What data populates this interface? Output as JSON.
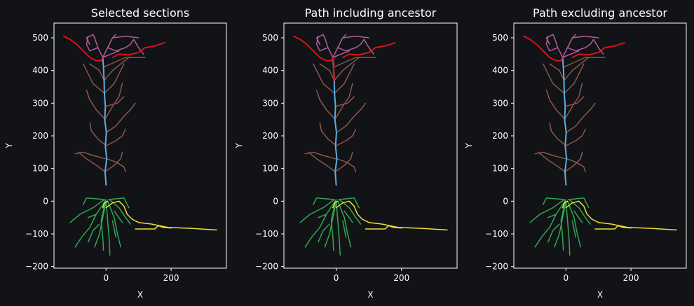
{
  "colors": {
    "background": "#121316",
    "axes": "#ffffff",
    "basal": "#2ea84f",
    "apical": "#8c564b",
    "tuft": "#b05aa0",
    "trunk": "#5aaee0",
    "selected_red": "#e8121c",
    "axon": "#f0dc3c"
  },
  "chart_data": [
    {
      "type": "line",
      "title": "Selected sections",
      "xlabel": "X",
      "ylabel": "Y",
      "xlim": [
        -160,
        370
      ],
      "ylim": [
        -205,
        545
      ],
      "xticks": [
        0,
        200
      ],
      "yticks": [
        -200,
        -100,
        0,
        100,
        200,
        300,
        400,
        500
      ],
      "highlight": "branch",
      "grid": false
    },
    {
      "type": "line",
      "title": "Path including ancestor",
      "xlabel": "X",
      "ylabel": "Y",
      "xlim": [
        -160,
        370
      ],
      "ylim": [
        -205,
        545
      ],
      "xticks": [
        0,
        200
      ],
      "yticks": [
        -200,
        -100,
        0,
        100,
        200,
        300,
        400,
        500
      ],
      "highlight": "path_with_ancestor",
      "grid": false
    },
    {
      "type": "line",
      "title": "Path excluding ancestor",
      "xlabel": "X",
      "ylabel": "Y",
      "xlim": [
        -160,
        370
      ],
      "ylim": [
        -205,
        545
      ],
      "xticks": [
        0,
        200
      ],
      "yticks": [
        -200,
        -100,
        0,
        100,
        200,
        300,
        400,
        500
      ],
      "highlight": "path_without_ancestor",
      "grid": false
    }
  ],
  "morphology": {
    "trunk": [
      [
        [
          0,
          50
        ],
        [
          -3,
          90
        ],
        [
          2,
          130
        ],
        [
          -2,
          170
        ],
        [
          1,
          210
        ],
        [
          -4,
          250
        ],
        [
          -2,
          290
        ],
        [
          -5,
          330
        ],
        [
          -6,
          370
        ],
        [
          -8,
          410
        ],
        [
          -10,
          440
        ]
      ]
    ],
    "axon": [
      [
        [
          0,
          -20
        ],
        [
          20,
          -5
        ],
        [
          40,
          0
        ],
        [
          55,
          -15
        ],
        [
          65,
          -40
        ],
        [
          80,
          -55
        ],
        [
          100,
          -65
        ],
        [
          140,
          -70
        ],
        [
          190,
          -80
        ],
        [
          260,
          -83
        ],
        [
          340,
          -88
        ]
      ],
      [
        [
          90,
          -85
        ],
        [
          150,
          -85
        ],
        [
          160,
          -75
        ],
        [
          175,
          -80
        ],
        [
          200,
          -82
        ]
      ],
      [
        [
          -10,
          -20
        ],
        [
          -5,
          -5
        ],
        [
          5,
          0
        ]
      ]
    ],
    "basal": [
      [
        [
          0,
          5
        ],
        [
          -30,
          -40
        ],
        [
          -50,
          -80
        ],
        [
          -75,
          -110
        ],
        [
          -95,
          -140
        ]
      ],
      [
        [
          -5,
          5
        ],
        [
          -40,
          -20
        ],
        [
          -80,
          -40
        ],
        [
          -110,
          -65
        ]
      ],
      [
        [
          0,
          0
        ],
        [
          -10,
          -50
        ],
        [
          -20,
          -100
        ],
        [
          -35,
          -140
        ]
      ],
      [
        [
          0,
          0
        ],
        [
          5,
          -60
        ],
        [
          10,
          -120
        ],
        [
          12,
          -165
        ]
      ],
      [
        [
          5,
          0
        ],
        [
          25,
          -50
        ],
        [
          35,
          -100
        ],
        [
          45,
          -140
        ]
      ],
      [
        [
          10,
          5
        ],
        [
          40,
          -20
        ],
        [
          60,
          -50
        ],
        [
          75,
          -70
        ]
      ],
      [
        [
          8,
          5
        ],
        [
          55,
          10
        ],
        [
          70,
          -20
        ]
      ],
      [
        [
          -5,
          5
        ],
        [
          -60,
          10
        ],
        [
          -70,
          -10
        ]
      ],
      [
        [
          -2,
          0
        ],
        [
          -15,
          -60
        ],
        [
          -10,
          -110
        ],
        [
          -8,
          -150
        ]
      ],
      [
        [
          -30,
          -40
        ],
        [
          -55,
          -50
        ]
      ],
      [
        [
          20,
          -60
        ],
        [
          30,
          -110
        ]
      ],
      [
        [
          -20,
          -70
        ],
        [
          -40,
          -90
        ],
        [
          -55,
          -125
        ]
      ],
      [
        [
          25,
          -30
        ],
        [
          50,
          -65
        ]
      ]
    ],
    "apical": [
      [
        [
          -3,
          90
        ],
        [
          -30,
          110
        ],
        [
          -60,
          130
        ],
        [
          -85,
          150
        ]
      ],
      [
        [
          -2,
          130
        ],
        [
          -40,
          140
        ],
        [
          -70,
          150
        ],
        [
          -95,
          145
        ]
      ],
      [
        [
          1,
          210
        ],
        [
          30,
          230
        ],
        [
          55,
          260
        ],
        [
          75,
          280
        ],
        [
          90,
          300
        ]
      ],
      [
        [
          -2,
          250
        ],
        [
          -30,
          280
        ],
        [
          -50,
          310
        ],
        [
          -60,
          340
        ]
      ],
      [
        [
          -4,
          250
        ],
        [
          20,
          290
        ],
        [
          40,
          320
        ],
        [
          50,
          360
        ]
      ],
      [
        [
          -5,
          330
        ],
        [
          -40,
          360
        ],
        [
          -55,
          390
        ],
        [
          -70,
          420
        ]
      ],
      [
        [
          -5,
          330
        ],
        [
          25,
          360
        ],
        [
          40,
          390
        ],
        [
          55,
          420
        ]
      ],
      [
        [
          -6,
          370
        ],
        [
          -20,
          400
        ],
        [
          -50,
          420
        ]
      ],
      [
        [
          -6,
          370
        ],
        [
          20,
          400
        ],
        [
          45,
          420
        ],
        [
          70,
          440
        ]
      ],
      [
        [
          1,
          170
        ],
        [
          -25,
          190
        ],
        [
          -45,
          215
        ],
        [
          -50,
          240
        ]
      ],
      [
        [
          1,
          170
        ],
        [
          30,
          185
        ],
        [
          50,
          200
        ],
        [
          60,
          220
        ]
      ],
      [
        [
          2,
          130
        ],
        [
          30,
          120
        ],
        [
          55,
          105
        ],
        [
          60,
          90
        ]
      ],
      [
        [
          -8,
          410
        ],
        [
          60,
          440
        ],
        [
          120,
          440
        ]
      ],
      [
        [
          -2,
          290
        ],
        [
          35,
          300
        ],
        [
          55,
          320
        ]
      ],
      [
        [
          -3,
          90
        ],
        [
          25,
          110
        ],
        [
          45,
          130
        ],
        [
          50,
          150
        ]
      ]
    ],
    "tuft": [
      [
        [
          -10,
          440
        ],
        [
          -25,
          470
        ],
        [
          -35,
          500
        ],
        [
          -40,
          510
        ]
      ],
      [
        [
          -10,
          440
        ],
        [
          5,
          470
        ],
        [
          20,
          500
        ],
        [
          30,
          510
        ]
      ],
      [
        [
          -25,
          470
        ],
        [
          -50,
          460
        ],
        [
          -60,
          480
        ],
        [
          -55,
          505
        ]
      ],
      [
        [
          5,
          470
        ],
        [
          30,
          460
        ],
        [
          60,
          470
        ],
        [
          75,
          480
        ],
        [
          85,
          495
        ]
      ],
      [
        [
          20,
          500
        ],
        [
          60,
          505
        ],
        [
          100,
          500
        ]
      ],
      [
        [
          -10,
          440
        ],
        [
          15,
          450
        ],
        [
          40,
          460
        ]
      ],
      [
        [
          -40,
          510
        ],
        [
          -60,
          500
        ],
        [
          -50,
          480
        ]
      ],
      [
        [
          85,
          495
        ],
        [
          100,
          470
        ],
        [
          115,
          450
        ]
      ]
    ],
    "branch_a": [
      [
        [
          -130,
          505
        ],
        [
          -110,
          495
        ],
        [
          -90,
          480
        ],
        [
          -70,
          460
        ],
        [
          -50,
          440
        ],
        [
          -30,
          430
        ],
        [
          -15,
          430
        ],
        [
          -10,
          440
        ]
      ]
    ],
    "branch_b": [
      [
        [
          20,
          440
        ],
        [
          40,
          450
        ],
        [
          70,
          448
        ],
        [
          100,
          455
        ],
        [
          120,
          470
        ],
        [
          150,
          475
        ],
        [
          180,
          485
        ]
      ]
    ],
    "branch_c": [
      [
        [
          -10,
          440
        ],
        [
          -7,
          420
        ],
        [
          -8,
          400
        ],
        [
          -6,
          370
        ]
      ]
    ]
  }
}
